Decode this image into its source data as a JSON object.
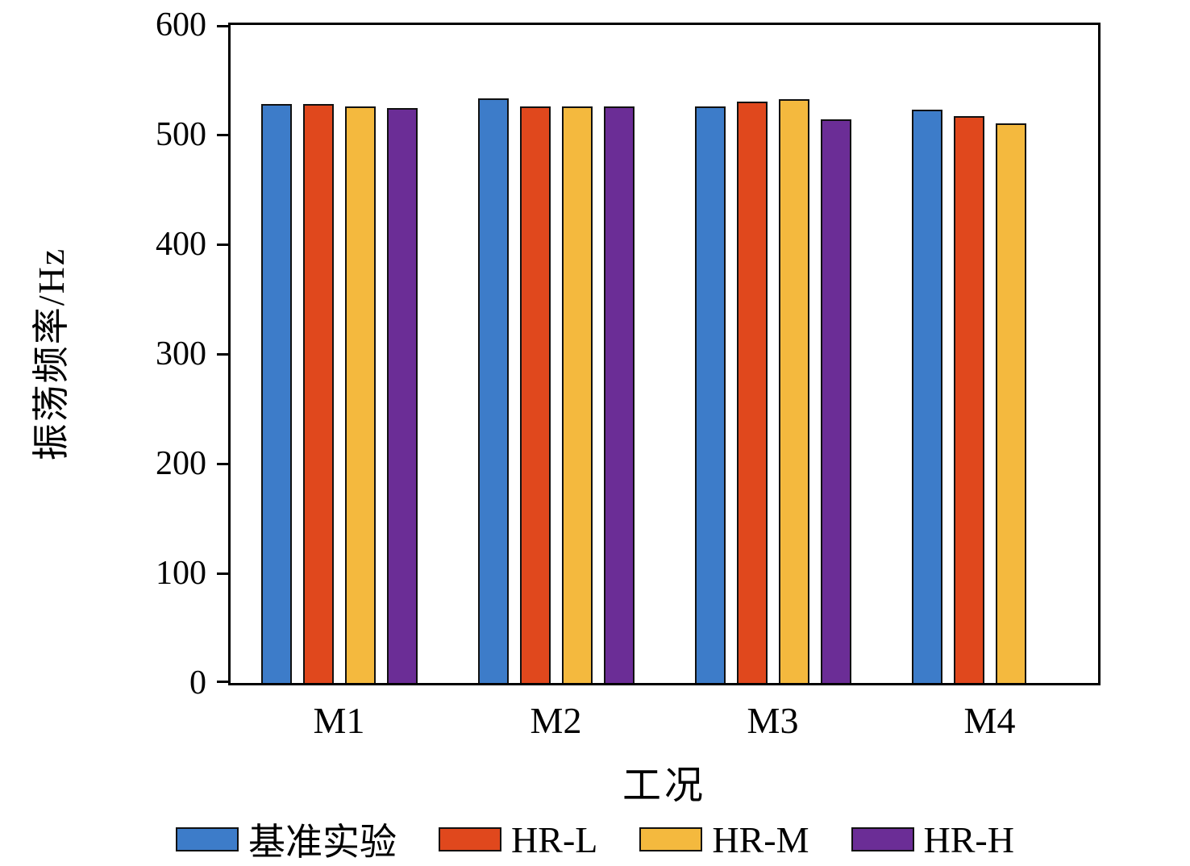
{
  "chart_data": {
    "type": "bar",
    "title": "",
    "xlabel": "工况",
    "ylabel": "振荡频率/Hz",
    "categories": [
      "M1",
      "M2",
      "M3",
      "M4"
    ],
    "series": [
      {
        "name": "基准实验",
        "color": "#3d7cc9",
        "values": [
          528,
          533,
          526,
          523
        ]
      },
      {
        "name": "HR-L",
        "color": "#e0481d",
        "values": [
          528,
          526,
          530,
          517
        ]
      },
      {
        "name": "HR-M",
        "color": "#f4b93e",
        "values": [
          526,
          526,
          532,
          510
        ]
      },
      {
        "name": "HR-H",
        "color": "#6b2d96",
        "values": [
          524,
          526,
          514,
          null
        ]
      }
    ],
    "ylim": [
      0,
      600
    ],
    "yticks": [
      0,
      100,
      200,
      300,
      400,
      500,
      600
    ],
    "grid": false,
    "legend_position": "bottom",
    "bar_edge_color": "#111111",
    "axis_color": "#000000"
  }
}
